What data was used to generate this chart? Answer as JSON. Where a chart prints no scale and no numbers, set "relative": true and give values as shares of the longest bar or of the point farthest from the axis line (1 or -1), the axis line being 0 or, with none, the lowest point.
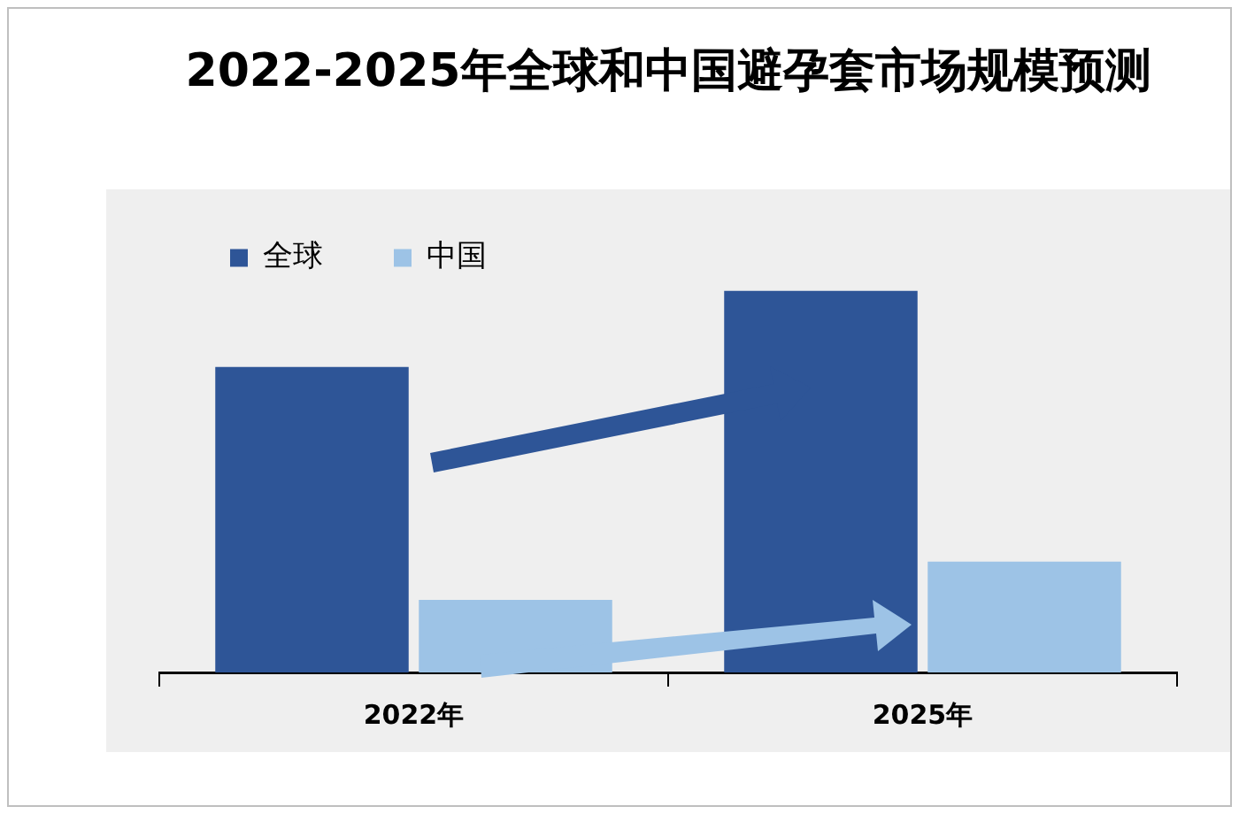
{
  "chart_data": {
    "type": "bar",
    "title": "2022-2025年全球和中国避孕套市场规模预测",
    "categories": [
      "2022年",
      "2025年"
    ],
    "relative": true,
    "legend": "top left",
    "grid": false,
    "series": [
      {
        "name": "全球",
        "color": "#2e5597",
        "values": [
          0.8,
          1
        ]
      },
      {
        "name": "中国",
        "color": "#9dc3e6",
        "values": [
          0.19,
          0.29
        ]
      }
    ]
  }
}
